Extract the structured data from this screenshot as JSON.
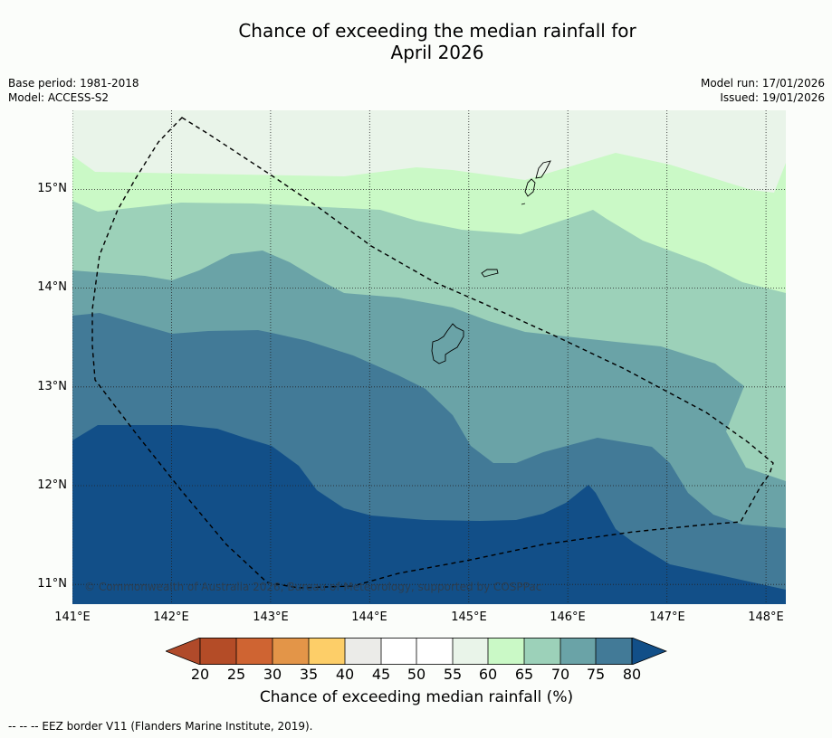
{
  "title_line1": "Chance of exceeding the median rainfall for",
  "title_line2": "April 2026",
  "meta_left": [
    "Base period: 1981-2018",
    "Model: ACCESS-S2"
  ],
  "meta_right": [
    "Model run: 17/01/2026",
    "Issued: 19/01/2026"
  ],
  "copyright": "© Commonwealth of Australia 2026, Bureau of Meteorology, supported by COSPPac",
  "footnote": "-- -- -- EEZ border V11 (Flanders Marine Institute, 2019).",
  "colorbar_title": "Chance of exceeding median rainfall (%)",
  "map": {
    "lon_range": [
      141.0,
      148.2
    ],
    "lat_range": [
      10.8,
      15.8
    ],
    "lon_labels": [
      "141°E",
      "142°E",
      "143°E",
      "144°E",
      "145°E",
      "146°E",
      "147°E",
      "148°E"
    ],
    "lat_labels": [
      "15°N",
      "14°N",
      "13°N",
      "12°N",
      "11°N"
    ]
  },
  "colorbar": {
    "ticks": [
      "20",
      "25",
      "30",
      "35",
      "40",
      "45",
      "50",
      "55",
      "60",
      "65",
      "70",
      "75",
      "80"
    ],
    "colors": {
      "lt20": "#b04a2a",
      "b20_25": "#b44c27",
      "b25_30": "#cf6432",
      "b30_35": "#e39548",
      "b35_40": "#fdce68",
      "b40_45": "#ebebe8",
      "b45_50": "#ffffff",
      "b50_55": "#ffffff",
      "b55_60": "#e9f4e9",
      "b60_65": "#caf9c6",
      "b65_70": "#9cd1b9",
      "b70_75": "#6aa3a7",
      "b75_80": "#427a97",
      "gt80": "#124f88"
    }
  }
}
